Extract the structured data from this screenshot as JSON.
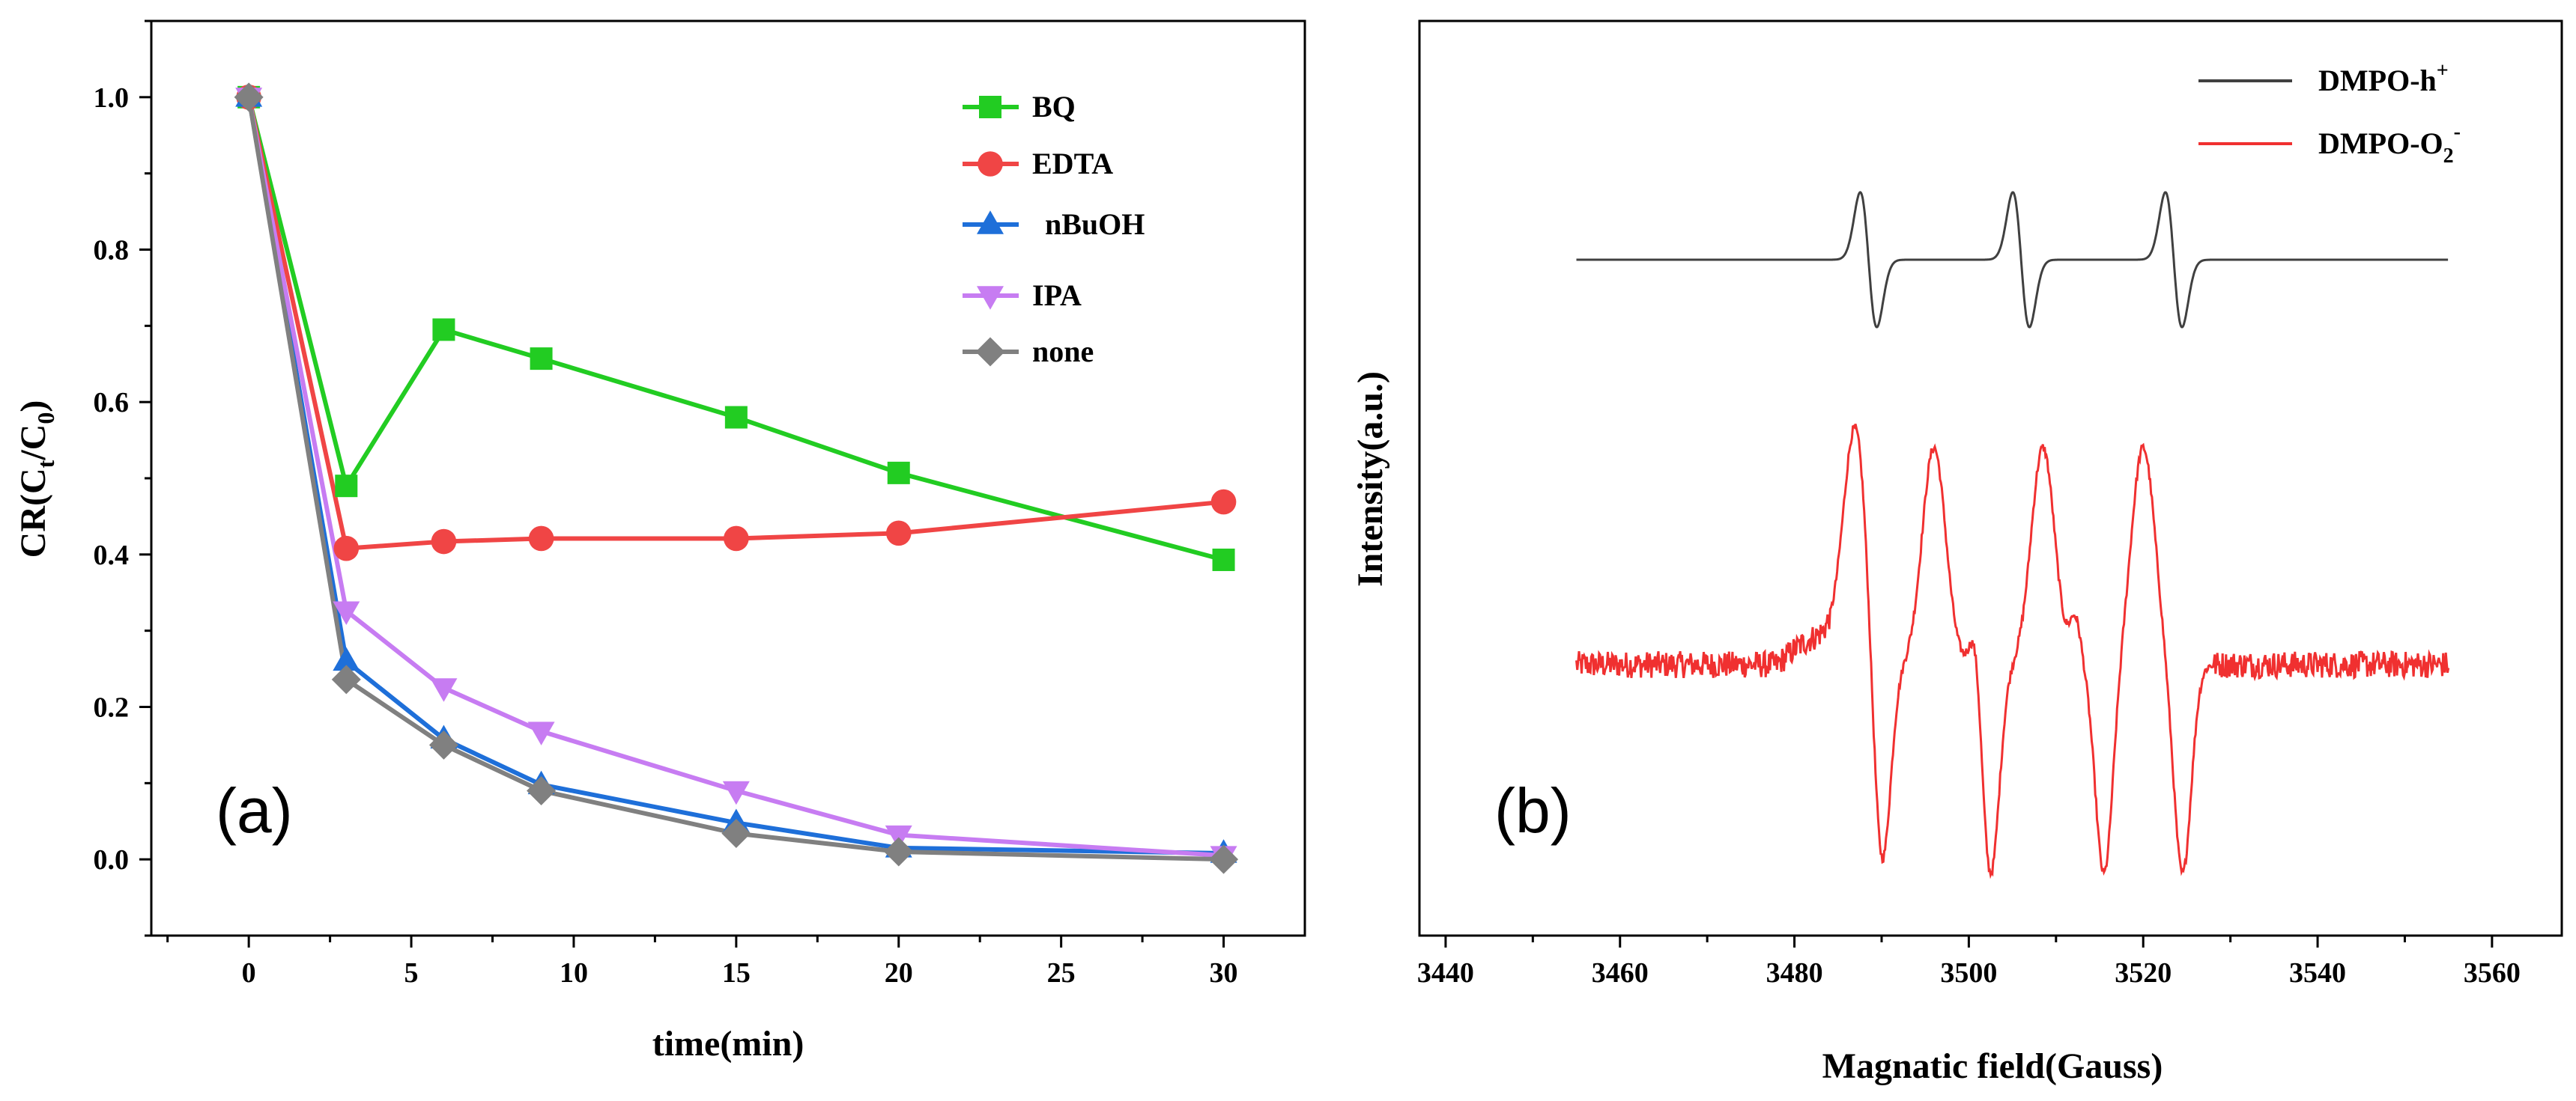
{
  "chart_data": [
    {
      "type": "line",
      "panel_label": "(a)",
      "xlabel": "time(min)",
      "ylabel": {
        "base": "CR(C",
        "sub1": "t",
        "mid": "/C",
        "sub2": "0",
        "end": ")"
      },
      "xlim": [
        -3,
        32.5
      ],
      "ylim": [
        -0.1,
        1.1
      ],
      "xticks": [
        0,
        5,
        10,
        15,
        20,
        25,
        30
      ],
      "yticks": [
        0.0,
        0.2,
        0.4,
        0.6,
        0.8,
        1.0
      ],
      "ytick_labels": [
        "0.0",
        "0.2",
        "0.4",
        "0.6",
        "0.8",
        "1.0"
      ],
      "legend_position": "top-right",
      "series": [
        {
          "name": "BQ",
          "color": "#22cc22",
          "marker": "square",
          "x": [
            0,
            3,
            6,
            9,
            15,
            20,
            30
          ],
          "y": [
            1.0,
            0.49,
            0.695,
            0.657,
            0.58,
            0.507,
            0.393
          ]
        },
        {
          "name": "EDTA",
          "color": "#f04545",
          "marker": "circle",
          "x": [
            0,
            3,
            6,
            9,
            15,
            20,
            30
          ],
          "y": [
            1.0,
            0.408,
            0.417,
            0.421,
            0.421,
            0.428,
            0.469
          ]
        },
        {
          "name": "nBuOH",
          "color": "#1e6fd9",
          "marker": "triangle-up",
          "x": [
            0,
            3,
            6,
            9,
            15,
            20,
            30
          ],
          "y": [
            1.0,
            0.26,
            0.158,
            0.098,
            0.048,
            0.015,
            0.008
          ]
        },
        {
          "name": "IPA",
          "color": "#c77cf2",
          "marker": "triangle-down",
          "x": [
            0,
            3,
            6,
            9,
            15,
            20,
            30
          ],
          "y": [
            1.0,
            0.326,
            0.225,
            0.168,
            0.09,
            0.032,
            0.005
          ]
        },
        {
          "name": "none",
          "color": "#808080",
          "marker": "diamond",
          "x": [
            0,
            3,
            6,
            9,
            15,
            20,
            30
          ],
          "y": [
            1.0,
            0.236,
            0.15,
            0.09,
            0.034,
            0.01,
            0.0
          ]
        }
      ]
    },
    {
      "type": "line",
      "panel_label": "(b)",
      "xlabel": "Magnatic field(Gauss)",
      "ylabel": "Intensity(a.u.)",
      "xlim": [
        3437,
        3568
      ],
      "yticks_visible": false,
      "xticks": [
        3440,
        3460,
        3480,
        3500,
        3520,
        3540,
        3560
      ],
      "legend_position": "top-right",
      "series": [
        {
          "name": "DMPO-h",
          "name_sup": "+",
          "color": "#404040",
          "type": "EPR triplet",
          "x_range": [
            3455,
            3555
          ],
          "centers": [
            3488.5,
            3506,
            3523.5
          ]
        },
        {
          "name": "DMPO-O",
          "name_sub": "2",
          "name_sup": "-",
          "color": "#f03030",
          "type": "noisy EPR multiplet",
          "x_range": [
            3455,
            3555
          ],
          "peaks": [
            3487,
            3496,
            3508.5,
            3520
          ],
          "troughs": [
            3490,
            3502.5,
            3515.5,
            3524.5
          ]
        }
      ]
    }
  ]
}
